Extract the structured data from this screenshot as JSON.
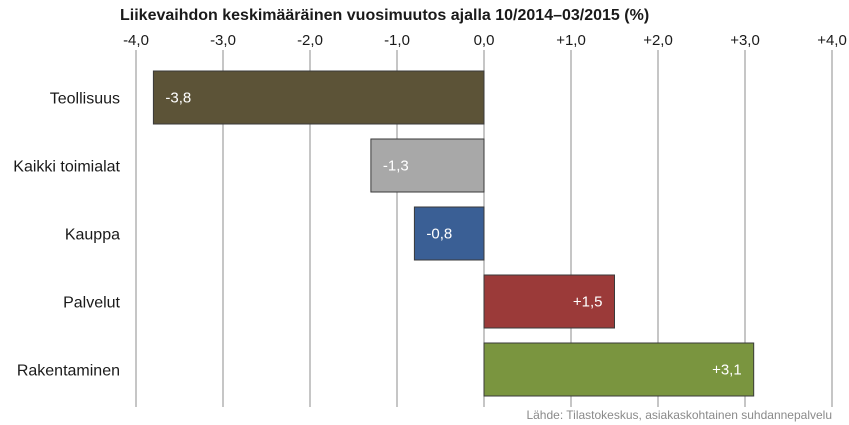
{
  "chart_data": {
    "type": "bar",
    "orientation": "horizontal",
    "title": "Liikevaihdon keskimääräinen vuosimuutos ajalla 10/2014–03/2015 (%)",
    "categories": [
      "Teollisuus",
      "Kaikki toimialat",
      "Kauppa",
      "Palvelut",
      "Rakentaminen"
    ],
    "values": [
      -3.8,
      -1.3,
      -0.8,
      1.5,
      3.1
    ],
    "data_labels": [
      "-3,8",
      "-1,3",
      "-0,8",
      "+1,5",
      "+3,1"
    ],
    "colors": [
      "#5c5337",
      "#a8a8a8",
      "#3a5f95",
      "#9b3a39",
      "#7a953f"
    ],
    "xlim": [
      -4,
      4
    ],
    "x_ticks": [
      -4,
      -3,
      -2,
      -1,
      0,
      1,
      2,
      3,
      4
    ],
    "x_tick_labels": [
      "-4,0",
      "-3,0",
      "-2,0",
      "-1,0",
      "0,0",
      "+1,0",
      "+2,0",
      "+3,0",
      "+4,0"
    ],
    "x_axis_position": "top",
    "grid": true,
    "source": "Lähde: Tilastokeskus, asiakaskohtainen suhdannepalvelu"
  }
}
